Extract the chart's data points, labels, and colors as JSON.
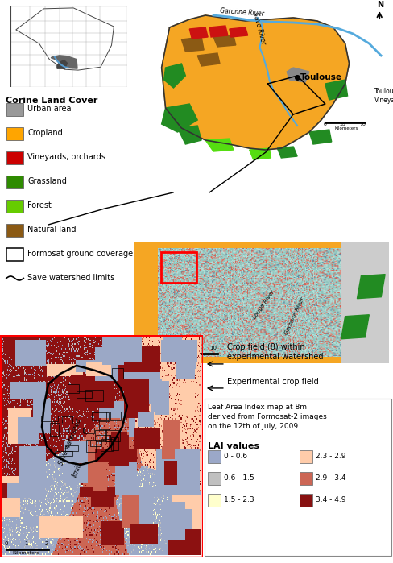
{
  "figsize": [
    4.88,
    6.99
  ],
  "dpi": 100,
  "background": "#ffffff",
  "legend_items": [
    {
      "label": "Urban area",
      "color": "#999999"
    },
    {
      "label": "Cropland",
      "color": "#FFA500"
    },
    {
      "label": "Vineyards, orchards",
      "color": "#CC0000"
    },
    {
      "label": "Grassland",
      "color": "#2E8B00"
    },
    {
      "label": "Forest",
      "color": "#66CC00"
    },
    {
      "label": "Natural land",
      "color": "#8B5A14"
    },
    {
      "label": "Formosat ground coverage",
      "color": "#ffffff"
    },
    {
      "label": "Save watershed limits",
      "color": "#000000"
    }
  ],
  "lai_items": [
    {
      "label": "0 - 0.6",
      "color": "#9BA8C8",
      "col": 0,
      "row": 0
    },
    {
      "label": "0.6 - 1.5",
      "color": "#C0C0C0",
      "col": 0,
      "row": 1
    },
    {
      "label": "1.5 - 2.3",
      "color": "#FFFFCC",
      "col": 0,
      "row": 2
    },
    {
      "label": "2.3 - 2.9",
      "color": "#FFCCAA",
      "col": 1,
      "row": 0
    },
    {
      "label": "2.9 - 3.4",
      "color": "#CC6655",
      "col": 1,
      "row": 1
    },
    {
      "label": "3.4 - 4.9",
      "color": "#881111",
      "col": 1,
      "row": 2
    }
  ],
  "corine_title": "Corine Land Cover",
  "lai_title": "Leaf Area Index map at 8m\nderived from Formosat-2 images\non the 12th of July, 2009",
  "lai_values_title": "LAI values",
  "annotation1": "Crop field (8) within\nexperimental watershed",
  "annotation2": "Experimental crop field"
}
